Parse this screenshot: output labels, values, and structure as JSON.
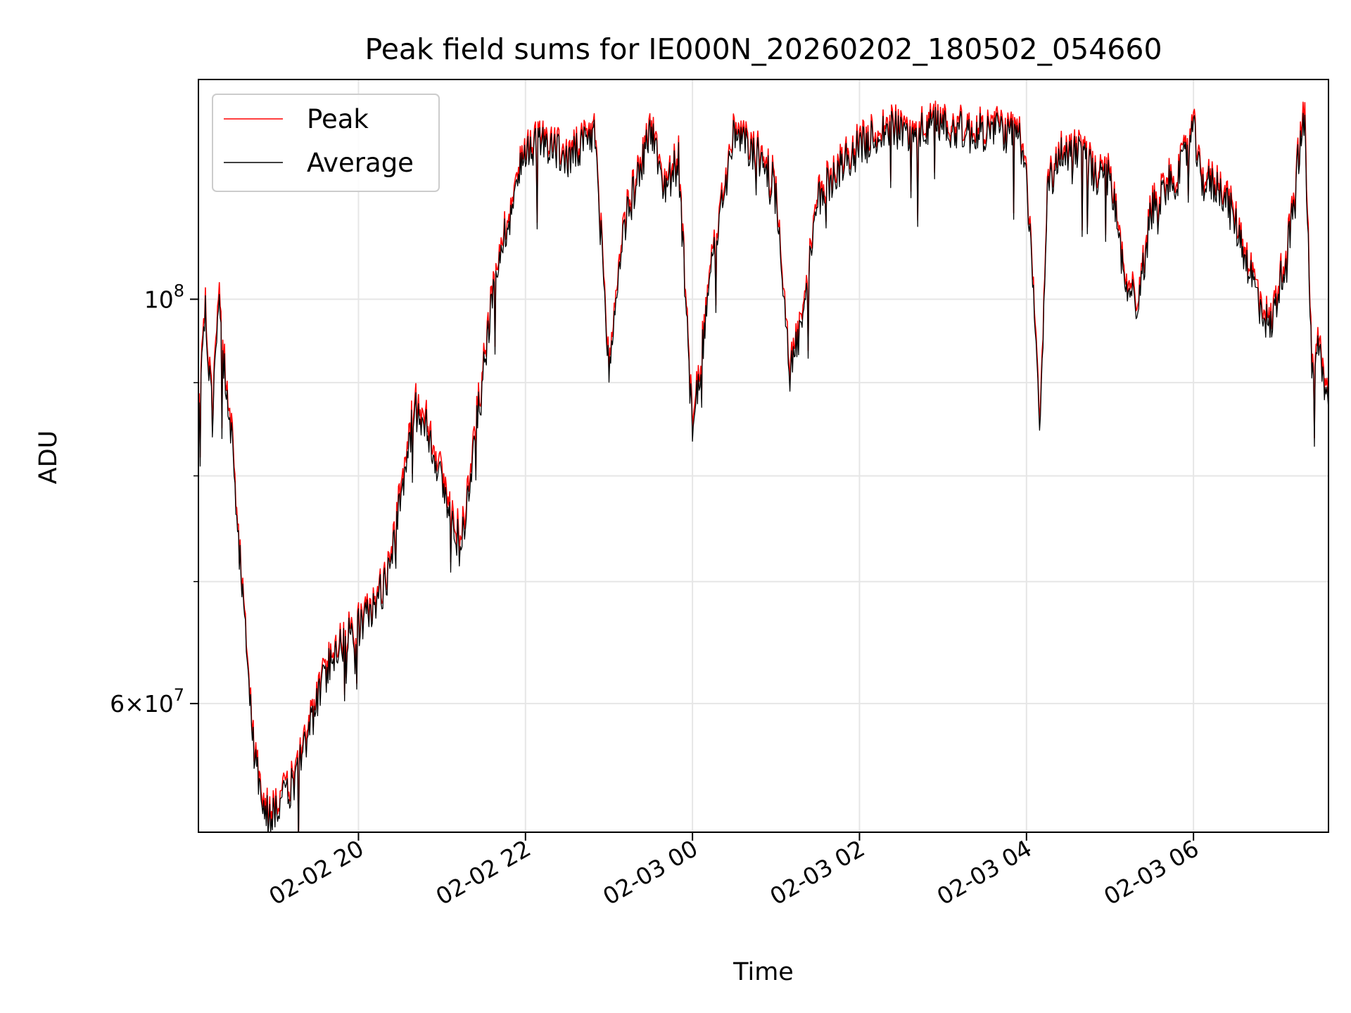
{
  "chart_data": {
    "type": "line",
    "title": "Peak field sums for IE000N_20260202_180502_054660",
    "xlabel": "Time",
    "ylabel": "ADU",
    "y_scale": "log",
    "ylim": [
      51000000,
      132000000
    ],
    "xlim": [
      "2026-02-02 18:05",
      "2026-02-03 07:37"
    ],
    "grid": true,
    "legend_position": "top-left",
    "x_ticks": [
      {
        "t": "2026-02-02 20:00",
        "label": "02-02 20"
      },
      {
        "t": "2026-02-02 22:00",
        "label": "02-02 22"
      },
      {
        "t": "2026-02-03 00:00",
        "label": "02-03 00"
      },
      {
        "t": "2026-02-03 02:00",
        "label": "02-03 02"
      },
      {
        "t": "2026-02-03 04:00",
        "label": "02-03 04"
      },
      {
        "t": "2026-02-03 06:00",
        "label": "02-03 06"
      }
    ],
    "y_major_ticks": [
      {
        "value": 60000000,
        "base": "6",
        "exp": "7"
      },
      {
        "value": 100000000,
        "base": "",
        "exp": "8"
      }
    ],
    "y_minor_ticks": [
      70000000,
      80000000,
      90000000
    ],
    "series": [
      {
        "name": "Peak",
        "color": "#ff0000",
        "x": [
          "2026-02-02 18:05",
          "2026-02-02 18:10",
          "2026-02-02 18:15",
          "2026-02-02 18:20",
          "2026-02-02 18:25",
          "2026-02-02 18:30",
          "2026-02-02 18:35",
          "2026-02-02 18:40",
          "2026-02-02 18:45",
          "2026-02-02 18:50",
          "2026-02-02 18:55",
          "2026-02-02 19:00",
          "2026-02-02 19:10",
          "2026-02-02 19:20",
          "2026-02-02 19:30",
          "2026-02-02 19:40",
          "2026-02-02 19:50",
          "2026-02-02 20:00",
          "2026-02-02 20:10",
          "2026-02-02 20:20",
          "2026-02-02 20:30",
          "2026-02-02 20:40",
          "2026-02-02 20:50",
          "2026-02-02 21:00",
          "2026-02-02 21:10",
          "2026-02-02 21:15",
          "2026-02-02 21:20",
          "2026-02-02 21:30",
          "2026-02-02 21:40",
          "2026-02-02 21:50",
          "2026-02-02 22:00",
          "2026-02-02 22:15",
          "2026-02-02 22:30",
          "2026-02-02 22:50",
          "2026-02-02 23:00",
          "2026-02-02 23:10",
          "2026-02-02 23:20",
          "2026-02-02 23:30",
          "2026-02-02 23:40",
          "2026-02-02 23:50",
          "2026-02-03 00:00",
          "2026-02-03 00:15",
          "2026-02-03 00:30",
          "2026-02-03 00:50",
          "2026-02-03 01:00",
          "2026-02-03 01:10",
          "2026-02-03 01:20",
          "2026-02-03 01:30",
          "2026-02-03 01:45",
          "2026-02-03 02:00",
          "2026-02-03 02:20",
          "2026-02-03 02:40",
          "2026-02-03 03:00",
          "2026-02-03 03:20",
          "2026-02-03 03:40",
          "2026-02-03 03:55",
          "2026-02-03 04:00",
          "2026-02-03 04:10",
          "2026-02-03 04:15",
          "2026-02-03 04:25",
          "2026-02-03 04:40",
          "2026-02-03 04:50",
          "2026-02-03 05:00",
          "2026-02-03 05:10",
          "2026-02-03 05:20",
          "2026-02-03 05:30",
          "2026-02-03 05:40",
          "2026-02-03 05:50",
          "2026-02-03 06:00",
          "2026-02-03 06:05",
          "2026-02-03 06:20",
          "2026-02-03 06:30",
          "2026-02-03 06:45",
          "2026-02-03 06:55",
          "2026-02-03 07:10",
          "2026-02-03 07:15",
          "2026-02-03 07:20",
          "2026-02-03 07:25",
          "2026-02-03 07:30",
          "2026-02-03 07:37"
        ],
        "y": [
          86000000,
          100000000,
          87000000,
          101000000,
          90000000,
          83000000,
          72000000,
          64000000,
          57000000,
          54000000,
          52500000,
          53000000,
          54000000,
          57000000,
          60500000,
          64000000,
          65500000,
          66500000,
          68000000,
          70500000,
          78000000,
          88000000,
          86000000,
          80000000,
          75000000,
          75500000,
          80000000,
          93000000,
          106000000,
          113000000,
          122000000,
          123000000,
          120000000,
          124000000,
          92000000,
          110000000,
          117000000,
          125000000,
          116000000,
          120000000,
          85000000,
          107000000,
          124000000,
          120000000,
          116000000,
          92000000,
          99000000,
          114000000,
          119000000,
          122000000,
          125000000,
          124000000,
          126000000,
          124000000,
          125000000,
          123000000,
          118000000,
          86000000,
          116000000,
          121000000,
          122000000,
          117000000,
          118000000,
          104000000,
          100000000,
          113000000,
          116000000,
          118000000,
          125000000,
          117000000,
          116000000,
          111000000,
          102000000,
          97000000,
          110000000,
          120000000,
          127000000,
          92000000,
          95000000,
          88000000
        ]
      },
      {
        "name": "Average",
        "color": "#000000",
        "x": [
          "2026-02-02 18:05",
          "2026-02-02 18:10",
          "2026-02-02 18:15",
          "2026-02-02 18:20",
          "2026-02-02 18:25",
          "2026-02-02 18:30",
          "2026-02-02 18:35",
          "2026-02-02 18:40",
          "2026-02-02 18:45",
          "2026-02-02 18:50",
          "2026-02-02 18:55",
          "2026-02-02 19:00",
          "2026-02-02 19:10",
          "2026-02-02 19:20",
          "2026-02-02 19:30",
          "2026-02-02 19:40",
          "2026-02-02 19:50",
          "2026-02-02 20:00",
          "2026-02-02 20:10",
          "2026-02-02 20:20",
          "2026-02-02 20:30",
          "2026-02-02 20:40",
          "2026-02-02 20:50",
          "2026-02-02 21:00",
          "2026-02-02 21:10",
          "2026-02-02 21:15",
          "2026-02-02 21:20",
          "2026-02-02 21:30",
          "2026-02-02 21:40",
          "2026-02-02 21:50",
          "2026-02-02 22:00",
          "2026-02-02 22:15",
          "2026-02-02 22:30",
          "2026-02-02 22:50",
          "2026-02-02 23:00",
          "2026-02-02 23:10",
          "2026-02-02 23:20",
          "2026-02-02 23:30",
          "2026-02-02 23:40",
          "2026-02-02 23:50",
          "2026-02-03 00:00",
          "2026-02-03 00:15",
          "2026-02-03 00:30",
          "2026-02-03 00:50",
          "2026-02-03 01:00",
          "2026-02-03 01:10",
          "2026-02-03 01:20",
          "2026-02-03 01:30",
          "2026-02-03 01:45",
          "2026-02-03 02:00",
          "2026-02-03 02:20",
          "2026-02-03 02:40",
          "2026-02-03 03:00",
          "2026-02-03 03:20",
          "2026-02-03 03:40",
          "2026-02-03 03:55",
          "2026-02-03 04:00",
          "2026-02-03 04:10",
          "2026-02-03 04:15",
          "2026-02-03 04:25",
          "2026-02-03 04:40",
          "2026-02-03 04:50",
          "2026-02-03 05:00",
          "2026-02-03 05:10",
          "2026-02-03 05:20",
          "2026-02-03 05:30",
          "2026-02-03 05:40",
          "2026-02-03 05:50",
          "2026-02-03 06:00",
          "2026-02-03 06:05",
          "2026-02-03 06:20",
          "2026-02-03 06:30",
          "2026-02-03 06:45",
          "2026-02-03 06:55",
          "2026-02-03 07:10",
          "2026-02-03 07:15",
          "2026-02-03 07:20",
          "2026-02-03 07:25",
          "2026-02-03 07:30",
          "2026-02-03 07:37"
        ],
        "y": [
          85000000,
          99000000,
          86000000,
          99500000,
          89000000,
          82000000,
          71500000,
          63500000,
          56500000,
          53500000,
          52000000,
          52500000,
          53500000,
          56500000,
          60000000,
          63500000,
          65000000,
          66000000,
          67500000,
          70000000,
          77000000,
          87000000,
          85000000,
          79000000,
          74000000,
          74500000,
          79000000,
          92000000,
          105000000,
          112000000,
          121000000,
          122000000,
          119000000,
          123000000,
          91000000,
          109000000,
          116000000,
          124000000,
          115000000,
          119000000,
          84000000,
          106000000,
          123000000,
          119000000,
          115000000,
          91000000,
          98000000,
          113000000,
          118000000,
          121000000,
          124000000,
          123000000,
          125000000,
          123000000,
          124000000,
          122000000,
          117000000,
          85000000,
          115000000,
          120000000,
          121000000,
          116000000,
          117000000,
          103000000,
          99000000,
          112000000,
          115000000,
          117000000,
          124000000,
          116000000,
          115000000,
          110000000,
          101000000,
          96000000,
          109000000,
          119000000,
          125000000,
          91000000,
          94000000,
          87000000
        ]
      }
    ]
  }
}
